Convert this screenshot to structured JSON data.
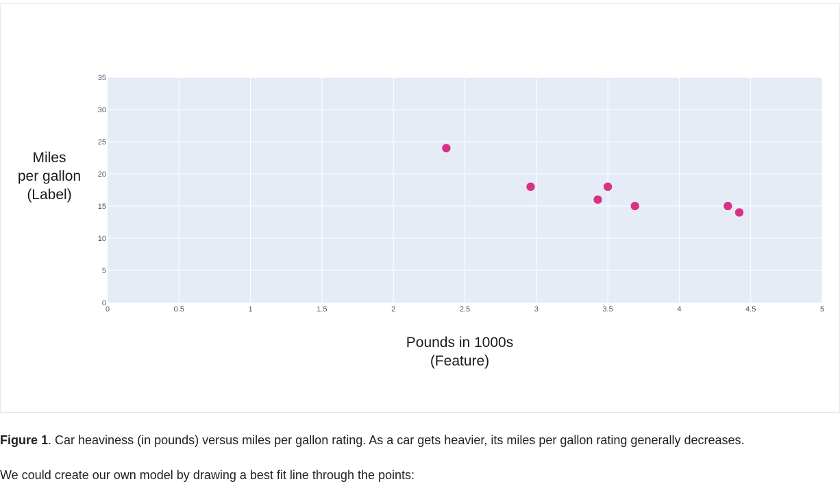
{
  "chart_data": {
    "type": "scatter",
    "xlabel_lines": [
      "Pounds in 1000s",
      "(Feature)"
    ],
    "ylabel_lines": [
      "Miles",
      "per gallon",
      "(Label)"
    ],
    "xlim": [
      0,
      5
    ],
    "ylim": [
      0,
      35
    ],
    "x_ticks": [
      0,
      0.5,
      1,
      1.5,
      2,
      2.5,
      3,
      3.5,
      4,
      4.5,
      5
    ],
    "y_ticks": [
      0,
      5,
      10,
      15,
      20,
      25,
      30,
      35
    ],
    "grid": true,
    "series": [
      {
        "color": "#d63384",
        "points": [
          {
            "x": 2.37,
            "y": 24
          },
          {
            "x": 2.96,
            "y": 18
          },
          {
            "x": 3.43,
            "y": 16
          },
          {
            "x": 3.5,
            "y": 18
          },
          {
            "x": 3.69,
            "y": 15
          },
          {
            "x": 4.34,
            "y": 15
          },
          {
            "x": 4.42,
            "y": 14
          }
        ]
      }
    ],
    "plot_bg": "#e5ecf6",
    "grid_color": "#ffffff"
  },
  "caption": {
    "bold": "Figure 1",
    "text": ". Car heaviness (in pounds) versus miles per gallon rating. As a car gets heavier, its miles per gallon rating generally decreases."
  },
  "paragraph": "We could create our own model by drawing a best fit line through the points:"
}
